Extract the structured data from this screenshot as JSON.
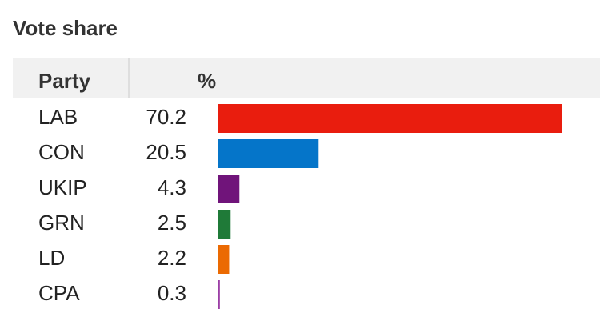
{
  "chart_data": {
    "type": "bar",
    "orientation": "horizontal",
    "title": "Vote share",
    "column_headers": [
      "Party",
      "%"
    ],
    "categories": [
      "LAB",
      "CON",
      "UKIP",
      "GRN",
      "LD",
      "CPA"
    ],
    "values": [
      70.2,
      20.5,
      4.3,
      2.5,
      2.2,
      0.3
    ],
    "colors": [
      "#e91d0e",
      "#0575c9",
      "#70147a",
      "#1f7a38",
      "#eb6a02",
      "#9b3fa6"
    ]
  }
}
